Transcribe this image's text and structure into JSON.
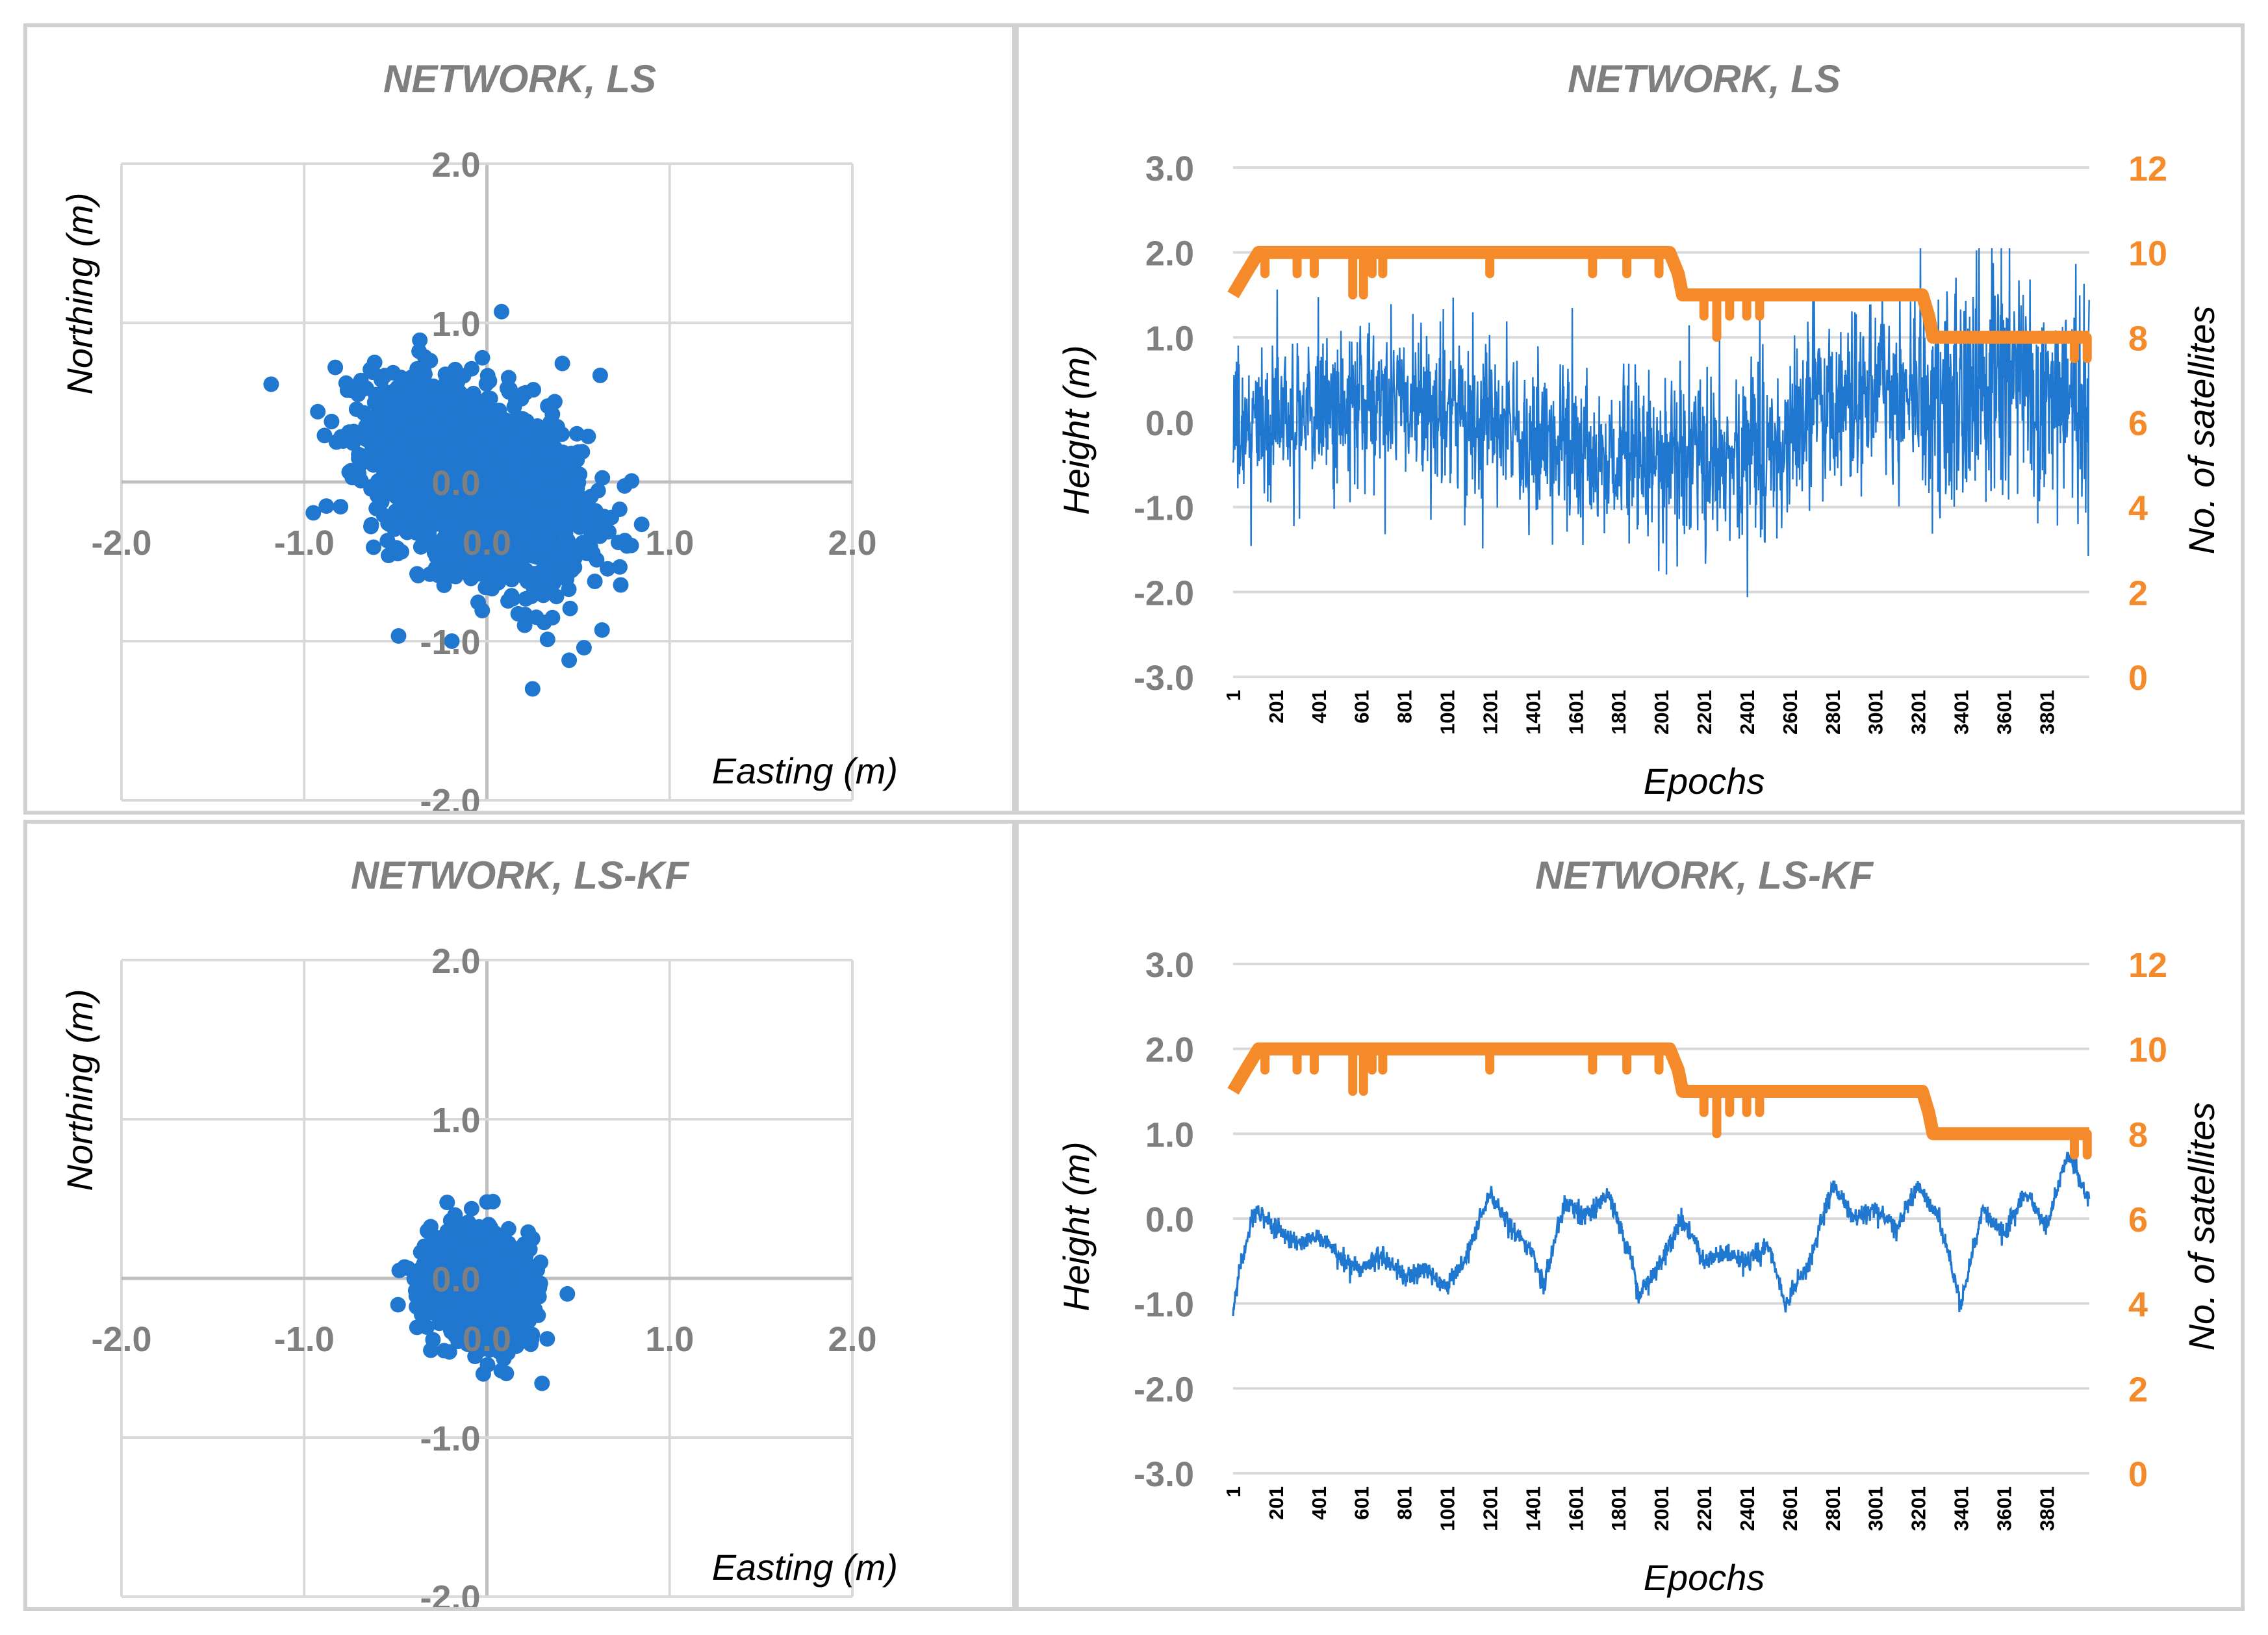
{
  "colors": {
    "blue": "#1f77d0",
    "orange": "#f58a2a",
    "grid": "#d9d9d9",
    "text": "#7f7f7f"
  },
  "chart_data": [
    {
      "type": "scatter",
      "title": "NETWORK, LS",
      "xlabel": "Easting (m)",
      "ylabel": "Northing (m)",
      "xlim": [
        -2.0,
        2.0
      ],
      "ylim": [
        -2.0,
        2.0
      ],
      "xticks": [
        "-2.0",
        "-1.0",
        "0.0",
        "1.0",
        "2.0"
      ],
      "yticks": [
        "-2.0",
        "-1.0",
        "0.0",
        "1.0",
        "2.0"
      ],
      "cloud": {
        "center": [
          -0.05,
          0.0
        ],
        "spread_e": 0.28,
        "spread_n": 0.3,
        "correlation": -0.4,
        "n_points": 2200,
        "extremes": [
          [
            0.08,
            1.07
          ],
          [
            -0.83,
            0.72
          ],
          [
            -0.85,
            0.38
          ],
          [
            0.72,
            -0.38
          ],
          [
            0.63,
            -0.93
          ],
          [
            0.25,
            -1.3
          ],
          [
            0.45,
            -1.12
          ],
          [
            0.62,
            0.67
          ]
        ]
      }
    },
    {
      "type": "line",
      "title": "NETWORK, LS",
      "xlabel": "Epochs",
      "ylabel": "Height (m)",
      "y2label": "No. of satellites",
      "ylim": [
        -3.0,
        3.0
      ],
      "y2lim": [
        0,
        12
      ],
      "yticks": [
        "-3.0",
        "-2.0",
        "-1.0",
        "0.0",
        "1.0",
        "2.0",
        "3.0"
      ],
      "y2ticks": [
        "0",
        "2",
        "4",
        "6",
        "8",
        "10",
        "12"
      ],
      "xticks": [
        "1",
        "201",
        "401",
        "601",
        "801",
        "1001",
        "1201",
        "1401",
        "1601",
        "1801",
        "2001",
        "2201",
        "2401",
        "2601",
        "2801",
        "3001",
        "3201",
        "3401",
        "3601",
        "3801"
      ],
      "n_epochs": 4000,
      "height_noise_amplitude": 0.5,
      "height_range": [
        -2.6,
        2.05
      ],
      "satellites_series": [
        [
          1,
          9
        ],
        [
          60,
          9.5
        ],
        [
          120,
          10
        ],
        [
          2040,
          10
        ],
        [
          2080,
          9.5
        ],
        [
          2100,
          9
        ],
        [
          3220,
          9
        ],
        [
          3250,
          8.5
        ],
        [
          3270,
          8
        ],
        [
          4000,
          8
        ]
      ]
    },
    {
      "type": "scatter",
      "title": "NETWORK, LS-KF",
      "xlabel": "Easting (m)",
      "ylabel": "Northing (m)",
      "xlim": [
        -2.0,
        2.0
      ],
      "ylim": [
        -2.0,
        2.0
      ],
      "xticks": [
        "-2.0",
        "-1.0",
        "0.0",
        "1.0",
        "2.0"
      ],
      "yticks": [
        "-2.0",
        "-1.0",
        "0.0",
        "1.0",
        "2.0"
      ],
      "cloud": {
        "center": [
          -0.05,
          -0.05
        ],
        "spread_e": 0.13,
        "spread_n": 0.16,
        "correlation": -0.2,
        "n_points": 1500,
        "extremes": [
          [
            0.0,
            0.48
          ],
          [
            -0.48,
            0.05
          ],
          [
            0.33,
            -0.38
          ],
          [
            -0.02,
            -0.6
          ],
          [
            0.25,
            0.25
          ]
        ]
      }
    },
    {
      "type": "line",
      "title": "NETWORK, LS-KF",
      "xlabel": "Epochs",
      "ylabel": "Height (m)",
      "y2label": "No. of satellites",
      "ylim": [
        -3.0,
        3.0
      ],
      "y2lim": [
        0,
        12
      ],
      "yticks": [
        "-3.0",
        "-2.0",
        "-1.0",
        "0.0",
        "1.0",
        "2.0",
        "3.0"
      ],
      "y2ticks": [
        "0",
        "2",
        "4",
        "6",
        "8",
        "10",
        "12"
      ],
      "xticks": [
        "1",
        "201",
        "401",
        "601",
        "801",
        "1001",
        "1201",
        "1401",
        "1601",
        "1801",
        "2001",
        "2201",
        "2401",
        "2601",
        "2801",
        "3001",
        "3201",
        "3401",
        "3601",
        "3801"
      ],
      "n_epochs": 4000,
      "height_profile": [
        [
          1,
          -1.1
        ],
        [
          40,
          -0.5
        ],
        [
          100,
          0.1
        ],
        [
          200,
          -0.1
        ],
        [
          300,
          -0.3
        ],
        [
          400,
          -0.2
        ],
        [
          500,
          -0.45
        ],
        [
          600,
          -0.6
        ],
        [
          700,
          -0.4
        ],
        [
          800,
          -0.7
        ],
        [
          900,
          -0.6
        ],
        [
          1000,
          -0.8
        ],
        [
          1100,
          -0.4
        ],
        [
          1200,
          0.3
        ],
        [
          1300,
          -0.1
        ],
        [
          1400,
          -0.4
        ],
        [
          1450,
          -0.8
        ],
        [
          1550,
          0.2
        ],
        [
          1650,
          0.0
        ],
        [
          1750,
          0.3
        ],
        [
          1850,
          -0.4
        ],
        [
          1900,
          -0.9
        ],
        [
          2000,
          -0.5
        ],
        [
          2100,
          0.0
        ],
        [
          2200,
          -0.5
        ],
        [
          2300,
          -0.4
        ],
        [
          2400,
          -0.5
        ],
        [
          2500,
          -0.3
        ],
        [
          2580,
          -1.0
        ],
        [
          2700,
          -0.5
        ],
        [
          2800,
          0.4
        ],
        [
          2900,
          0.0
        ],
        [
          3000,
          0.1
        ],
        [
          3100,
          -0.1
        ],
        [
          3200,
          0.4
        ],
        [
          3300,
          0.0
        ],
        [
          3400,
          -1.0
        ],
        [
          3500,
          0.1
        ],
        [
          3600,
          -0.2
        ],
        [
          3700,
          0.3
        ],
        [
          3800,
          -0.1
        ],
        [
          3900,
          0.8
        ],
        [
          4000,
          0.2
        ]
      ],
      "satellites_series": [
        [
          1,
          9
        ],
        [
          60,
          9.5
        ],
        [
          120,
          10
        ],
        [
          2040,
          10
        ],
        [
          2080,
          9.5
        ],
        [
          2100,
          9
        ],
        [
          3220,
          9
        ],
        [
          3250,
          8.5
        ],
        [
          3270,
          8
        ],
        [
          4000,
          8
        ]
      ]
    }
  ]
}
